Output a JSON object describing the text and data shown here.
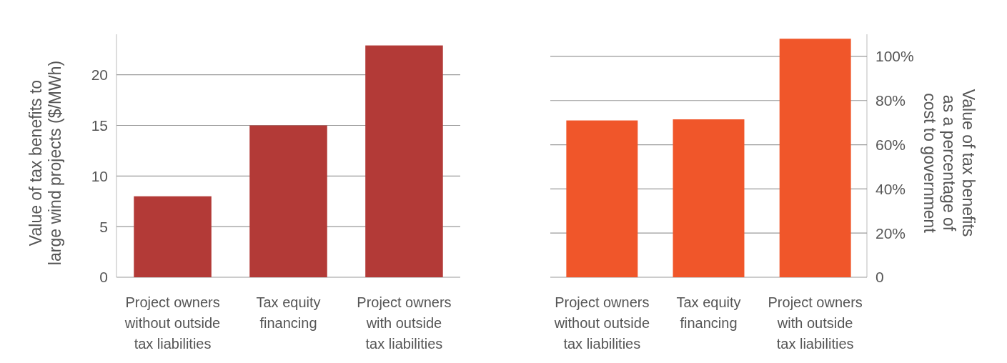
{
  "chart_data": [
    {
      "type": "bar",
      "ylabel": "Value of tax benefits to large wind projects ($/MWh)",
      "categories": [
        "Project owners without outside tax liabilities",
        "Tax equity financing",
        "Project owners with outside tax liabilities"
      ],
      "series": [
        {
          "color": "#b33a37",
          "values": [
            8,
            15,
            22.9
          ]
        }
      ],
      "ylim": [
        0,
        24
      ],
      "yticks": [
        0,
        5,
        10,
        15,
        20
      ],
      "grid": true
    },
    {
      "type": "bar",
      "y2label": "Value of tax benefits as a percentage of cost to government",
      "categories": [
        "Project owners without outside tax liabilities",
        "Tax equity financing",
        "Project owners with outside tax liabilities"
      ],
      "series": [
        {
          "color": "#f0562a",
          "values": [
            71,
            71.5,
            108
          ],
          "axis": "y2"
        }
      ],
      "y2lim": [
        0,
        110
      ],
      "y2ticks": [
        0,
        {
          "value": 20,
          "label": "20%"
        },
        {
          "value": 40,
          "label": "40%"
        },
        {
          "value": 60,
          "label": "60%"
        },
        {
          "value": 80,
          "label": "80%"
        },
        {
          "value": 100,
          "label": "100%"
        }
      ],
      "grid": true
    }
  ]
}
